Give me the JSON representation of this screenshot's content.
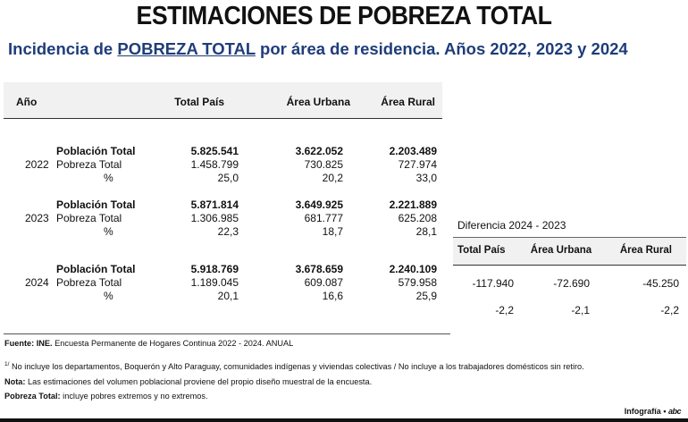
{
  "title": "ESTIMACIONES DE POBREZA TOTAL",
  "subtitle": {
    "pre": "Incidencia de ",
    "highlight": "POBREZA TOTAL",
    "post": " por área de residencia. Años 2022, 2023 y 2024"
  },
  "table": {
    "headers": {
      "year": "Año",
      "total": "Total País",
      "urban": "Área Urbana",
      "rural": "Área Rural"
    },
    "years": [
      {
        "year": "2022",
        "rows": [
          {
            "label": "Población Total",
            "total": "5.825.541",
            "urban": "3.622.052",
            "rural": "2.203.489"
          },
          {
            "label": "Pobreza Total",
            "total": "1.458.799",
            "urban": "730.825",
            "rural": "727.974"
          },
          {
            "label": "%",
            "total": "25,0",
            "urban": "20,2",
            "rural": "33,0"
          }
        ]
      },
      {
        "year": "2023",
        "rows": [
          {
            "label": "Población Total",
            "total": "5.871.814",
            "urban": "3.649.925",
            "rural": "2.221.889"
          },
          {
            "label": "Pobreza Total",
            "total": "1.306.985",
            "urban": "681.777",
            "rural": "625.208"
          },
          {
            "label": "%",
            "total": "22,3",
            "urban": "18,7",
            "rural": "28,1"
          }
        ]
      },
      {
        "year": "2024",
        "rows": [
          {
            "label": "Población Total",
            "total": "5.918.769",
            "urban": "3.678.659",
            "rural": "2.240.109"
          },
          {
            "label": "Pobreza Total",
            "total": "1.189.045",
            "urban": "609.087",
            "rural": "579.958"
          },
          {
            "label": "%",
            "total": "20,1",
            "urban": "16,6",
            "rural": "25,9"
          }
        ]
      }
    ]
  },
  "difference": {
    "title": "Diferencia 2024 - 2023",
    "headers": {
      "total": "Total País",
      "urban": "Área Urbana",
      "rural": "Área Rural"
    },
    "rows": [
      {
        "total": "-117.940",
        "urban": "-72.690",
        "rural": "-45.250"
      },
      {
        "total": "-2,2",
        "urban": "-2,1",
        "rural": "-2,2"
      }
    ]
  },
  "footnotes": {
    "source_label": "Fuente: INE.",
    "source_text": " Encuesta Permanente de Hogares Continua 2022 - 2024. ANUAL",
    "note1_mark": "1/",
    "note1_text": " No incluye los departamentos, Boquerón y Alto Paraguay, comunidades indígenas y viviendas colectivas / No incluye a los trabajadores domésticos sin retiro.",
    "nota_label": "Nota:",
    "nota_text": " Las estimaciones del volumen poblacional proviene del propio diseño muestral de la encuesta.",
    "pt_label": "Pobreza Total:",
    "pt_text": " incluye pobres extremos y no extremos."
  },
  "credit": {
    "label": "Infografía",
    "bullet": "•",
    "brand": "abc"
  }
}
